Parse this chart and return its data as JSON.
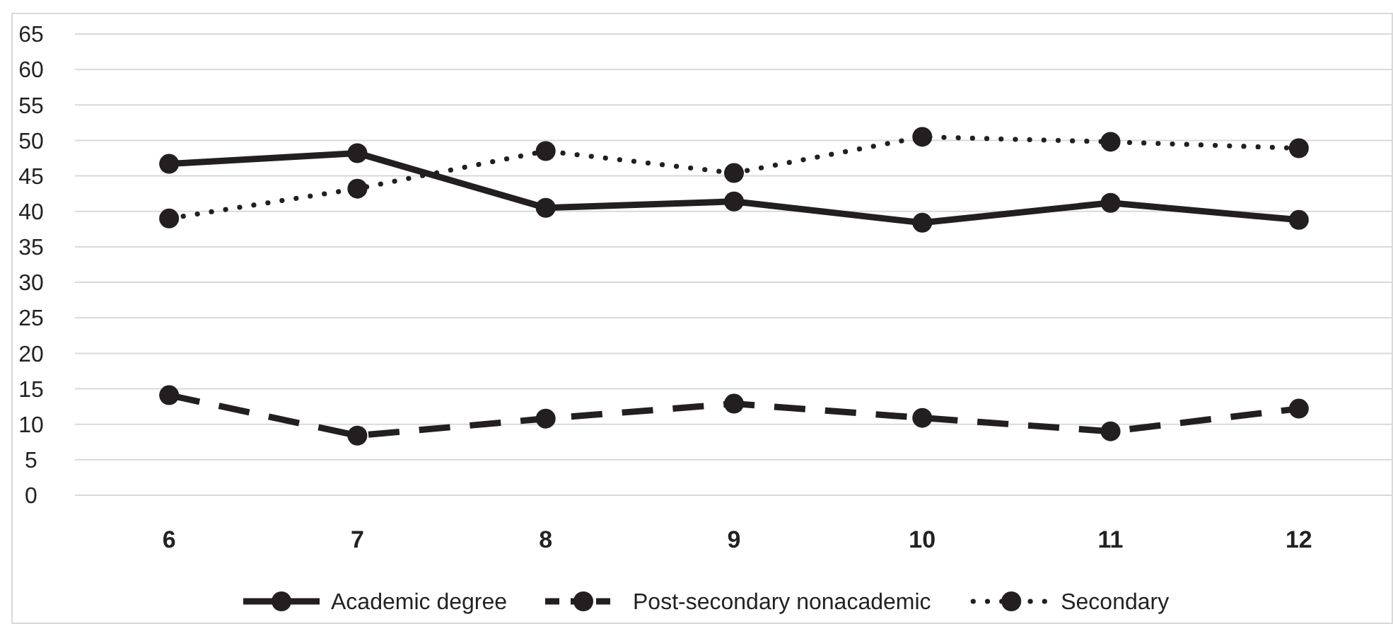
{
  "chart_data": {
    "type": "line",
    "categories": [
      "6",
      "7",
      "8",
      "9",
      "10",
      "11",
      "12"
    ],
    "series": [
      {
        "name": "Academic degree",
        "color": "#231f20",
        "line_style": "solid",
        "values": [
          46.7,
          48.2,
          40.5,
          41.4,
          38.4,
          41.2,
          38.8
        ]
      },
      {
        "name": "Post-secondary nonacademic",
        "color": "#231f20",
        "line_style": "dashed",
        "values": [
          14.1,
          8.4,
          10.8,
          12.9,
          10.9,
          9.0,
          12.2
        ]
      },
      {
        "name": "Secondary",
        "color": "#231f20",
        "line_style": "dotted",
        "values": [
          39.0,
          43.2,
          48.5,
          45.4,
          50.5,
          49.8,
          48.9
        ]
      }
    ],
    "ylim": [
      0,
      65
    ],
    "yticks": [
      0,
      5,
      10,
      15,
      20,
      25,
      30,
      35,
      40,
      45,
      50,
      55,
      60,
      65
    ],
    "grid": "y",
    "legend": "bottom",
    "marker": "circle"
  }
}
